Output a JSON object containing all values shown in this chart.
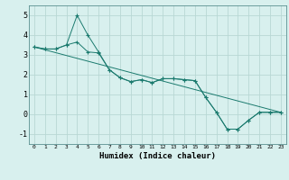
{
  "xlabel": "Humidex (Indice chaleur)",
  "bg_color": "#d8f0ee",
  "grid_color": "#b8d8d4",
  "line_color": "#1a7a6e",
  "xlim": [
    -0.5,
    23.5
  ],
  "ylim": [
    -1.5,
    5.5
  ],
  "xticks": [
    0,
    1,
    2,
    3,
    4,
    5,
    6,
    7,
    8,
    9,
    10,
    11,
    12,
    13,
    14,
    15,
    16,
    17,
    18,
    19,
    20,
    21,
    22,
    23
  ],
  "yticks": [
    -1,
    0,
    1,
    2,
    3,
    4,
    5
  ],
  "series1_x": [
    0,
    1,
    2,
    3,
    4,
    5,
    6,
    7,
    8,
    9,
    10,
    11,
    12,
    13,
    14,
    15,
    16,
    17,
    18,
    19,
    20,
    21,
    22,
    23
  ],
  "series1_y": [
    3.4,
    3.3,
    3.3,
    3.5,
    3.65,
    3.15,
    3.1,
    2.25,
    1.85,
    1.65,
    1.75,
    1.6,
    1.8,
    1.8,
    1.75,
    1.7,
    0.85,
    0.1,
    -0.75,
    -0.75,
    -0.3,
    0.1,
    0.1,
    0.1
  ],
  "series2_x": [
    0,
    1,
    2,
    3,
    4,
    5,
    6,
    7,
    8,
    9,
    10,
    11,
    12,
    13,
    14,
    15,
    16,
    17,
    18,
    19,
    20,
    21,
    22,
    23
  ],
  "series2_y": [
    3.4,
    3.3,
    3.3,
    3.5,
    5.0,
    4.0,
    3.15,
    2.25,
    1.85,
    1.65,
    1.75,
    1.6,
    1.8,
    1.8,
    1.75,
    1.7,
    0.85,
    0.1,
    -0.75,
    -0.75,
    -0.3,
    0.1,
    0.1,
    0.1
  ],
  "series3_x": [
    0,
    23
  ],
  "series3_y": [
    3.4,
    0.1
  ]
}
